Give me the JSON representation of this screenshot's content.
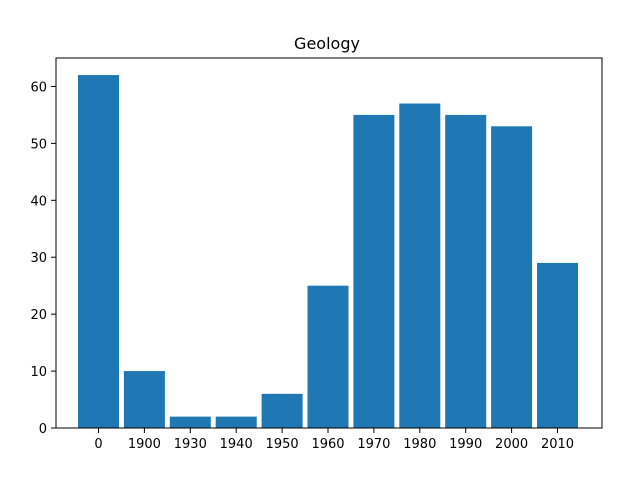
{
  "chart_data": {
    "type": "bar",
    "title": "Geology",
    "xlabel": "",
    "ylabel": "",
    "categories": [
      "0",
      "1900",
      "1930",
      "1940",
      "1950",
      "1960",
      "1970",
      "1980",
      "1990",
      "2000",
      "2010"
    ],
    "values": [
      62,
      10,
      2,
      2,
      6,
      25,
      55,
      57,
      55,
      53,
      29
    ],
    "ylim": [
      0,
      65
    ],
    "yticks": [
      0,
      10,
      20,
      30,
      40,
      50,
      60
    ],
    "grid": false,
    "bar_color": "#1f77b4"
  }
}
